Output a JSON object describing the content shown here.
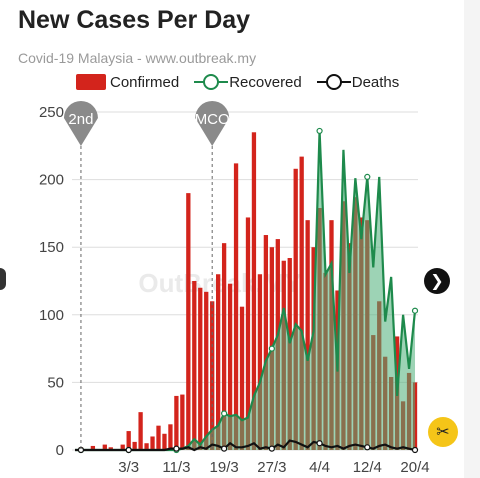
{
  "header": {
    "title": "New Cases Per Day",
    "subtitle": "Covid-19 Malaysia - www.outbreak.my"
  },
  "watermark": "OutBreak.MY",
  "colors": {
    "confirmed": "#d3241c",
    "recovered_line": "#1e8a4c",
    "recovered_fill": "#4caf78",
    "deaths": "#111111",
    "grid": "#dddddd",
    "marker": "#8a8a8a"
  },
  "controls": {
    "next_icon": "chevron-right-icon",
    "download_icon": "scissors-icon"
  },
  "chart_data": {
    "type": "bar",
    "title": "New Cases Per Day",
    "ylim": [
      0,
      250
    ],
    "yticks": [
      "0",
      "50",
      "100",
      "150",
      "200",
      "250"
    ],
    "xtick_labels": [
      {
        "label": "3/3",
        "index": 9
      },
      {
        "label": "11/3",
        "index": 17
      },
      {
        "label": "19/3",
        "index": 25
      },
      {
        "label": "27/3",
        "index": 33
      },
      {
        "label": "4/4",
        "index": 41
      },
      {
        "label": "12/4",
        "index": 49
      },
      {
        "label": "20/4",
        "index": 57
      }
    ],
    "annotations": [
      {
        "label": "2nd",
        "index": 1
      },
      {
        "label": "MCO",
        "index": 23
      }
    ],
    "grid": true,
    "legend_position": "top",
    "series": [
      {
        "name": "Confirmed",
        "type": "bar",
        "values": [
          0,
          2,
          0,
          3,
          0,
          4,
          2,
          0,
          4,
          14,
          6,
          28,
          5,
          10,
          18,
          12,
          19,
          40,
          41,
          190,
          125,
          120,
          117,
          110,
          130,
          153,
          123,
          212,
          106,
          172,
          235,
          130,
          159,
          150,
          156,
          140,
          142,
          208,
          217,
          170,
          150,
          179,
          131,
          170,
          118,
          184,
          153,
          187,
          172,
          170,
          85,
          110,
          69,
          54,
          84,
          36,
          57,
          50
        ]
      },
      {
        "name": "Recovered",
        "type": "area",
        "values": [
          0,
          0,
          0,
          0,
          0,
          0,
          0,
          0,
          0,
          0,
          0,
          0,
          0,
          0,
          0,
          0,
          0,
          0,
          1,
          3,
          8,
          4,
          10,
          15,
          18,
          27,
          25,
          26,
          22,
          24,
          40,
          50,
          66,
          75,
          85,
          105,
          79,
          93,
          88,
          66,
          88,
          236,
          130,
          138,
          58,
          222,
          131,
          201,
          156,
          202,
          135,
          202,
          95,
          128,
          40,
          100,
          60,
          103
        ]
      },
      {
        "name": "Deaths",
        "type": "line",
        "values": [
          0,
          0,
          0,
          0,
          0,
          0,
          0,
          0,
          0,
          0,
          0,
          0,
          0,
          0,
          0,
          0,
          1,
          1,
          1,
          2,
          0,
          2,
          1,
          4,
          3,
          1,
          5,
          2,
          2,
          3,
          5,
          1,
          2,
          1,
          4,
          2,
          7,
          6,
          4,
          2,
          6,
          5,
          3,
          2,
          3,
          1,
          3,
          4,
          3,
          2,
          1,
          3,
          4,
          2,
          1,
          2,
          1,
          0
        ]
      }
    ]
  }
}
